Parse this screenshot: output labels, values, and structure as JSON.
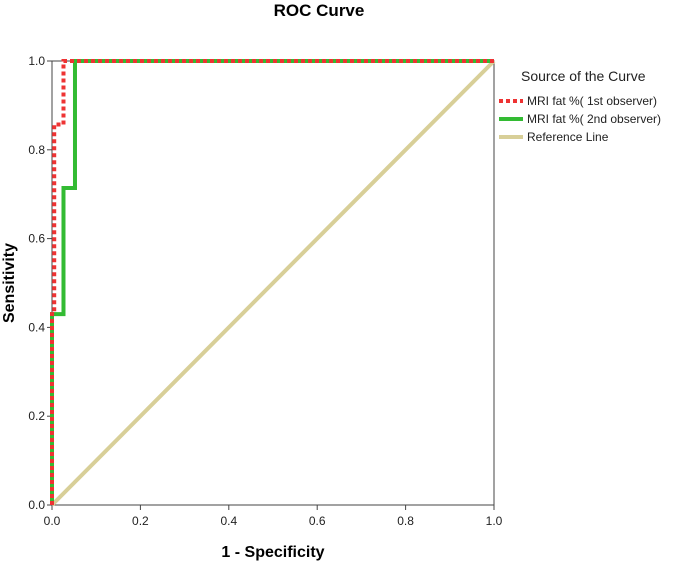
{
  "chart_data": {
    "type": "line",
    "title": "ROC Curve",
    "xlabel": "1 - Specificity",
    "ylabel": "Sensitivity",
    "xlim": [
      0,
      1
    ],
    "ylim": [
      0,
      1
    ],
    "xticks": [
      "0.0",
      "0.2",
      "0.4",
      "0.6",
      "0.8",
      "1.0"
    ],
    "yticks": [
      "0.0",
      "0.2",
      "0.4",
      "0.6",
      "0.8",
      "1.0"
    ],
    "grid": false,
    "legend": {
      "title": "Source of the Curve",
      "placement": "right"
    },
    "series": [
      {
        "name": "MRI fat %( 1st observer)",
        "color": "#ee3333",
        "style": "dotted",
        "points": [
          [
            0,
            0
          ],
          [
            0,
            0.43
          ],
          [
            0.005,
            0.43
          ],
          [
            0.005,
            0.857
          ],
          [
            0.026,
            0.857
          ],
          [
            0.026,
            1.0
          ],
          [
            1.0,
            1.0
          ]
        ]
      },
      {
        "name": "MRI fat %( 2nd observer)",
        "color": "#33bb33",
        "style": "solid",
        "points": [
          [
            0,
            0
          ],
          [
            0,
            0.43
          ],
          [
            0.026,
            0.43
          ],
          [
            0.026,
            0.714
          ],
          [
            0.052,
            0.714
          ],
          [
            0.052,
            1.0
          ],
          [
            1.0,
            1.0
          ]
        ]
      },
      {
        "name": "Reference Line",
        "color": "#d8cf98",
        "style": "solid",
        "points": [
          [
            0,
            0
          ],
          [
            1,
            1
          ]
        ]
      }
    ]
  }
}
